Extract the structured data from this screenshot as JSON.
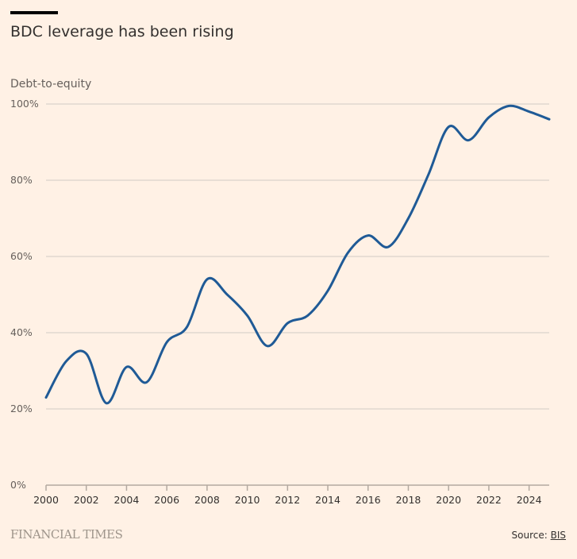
{
  "header": {
    "title": "BDC leverage has been rising",
    "subtitle": "Debt-to-equity"
  },
  "footer": {
    "logo": "FINANCIAL TIMES",
    "source_prefix": "Source: ",
    "source_link": "BIS"
  },
  "colors": {
    "line": "#1f5a96",
    "grid": "#e0d8d0",
    "background": "#fff1e5"
  },
  "chart_data": {
    "type": "line",
    "title": "BDC leverage has been rising",
    "ylabel": "Debt-to-equity",
    "xlabel": "",
    "ylim": [
      0,
      100
    ],
    "xlim": [
      2000,
      2025
    ],
    "grid": true,
    "yticks": [
      0,
      20,
      40,
      60,
      80,
      100
    ],
    "ytick_labels": [
      "0%",
      "20%",
      "40%",
      "60%",
      "80%",
      "100%"
    ],
    "xticks": [
      2000,
      2002,
      2004,
      2006,
      2008,
      2010,
      2012,
      2014,
      2016,
      2018,
      2020,
      2022,
      2024
    ],
    "xtick_labels": [
      "2000",
      "2002",
      "2004",
      "2006",
      "2008",
      "2010",
      "2012",
      "2014",
      "2016",
      "2018",
      "2020",
      "2022",
      "2024"
    ],
    "series": [
      {
        "name": "Debt-to-equity",
        "x": [
          2000,
          2001,
          2002,
          2003,
          2004,
          2005,
          2006,
          2007,
          2008,
          2009,
          2010,
          2011,
          2012,
          2013,
          2014,
          2015,
          2016,
          2017,
          2018,
          2019,
          2020,
          2021,
          2022,
          2023,
          2024,
          2025
        ],
        "values": [
          23,
          32.5,
          34.5,
          21.5,
          31,
          27,
          37.5,
          41.5,
          54,
          50,
          44.5,
          36.5,
          42.5,
          44.5,
          51,
          61,
          65.5,
          62.5,
          70,
          81.5,
          94,
          90.5,
          96.5,
          99.5,
          98,
          96
        ]
      }
    ]
  }
}
